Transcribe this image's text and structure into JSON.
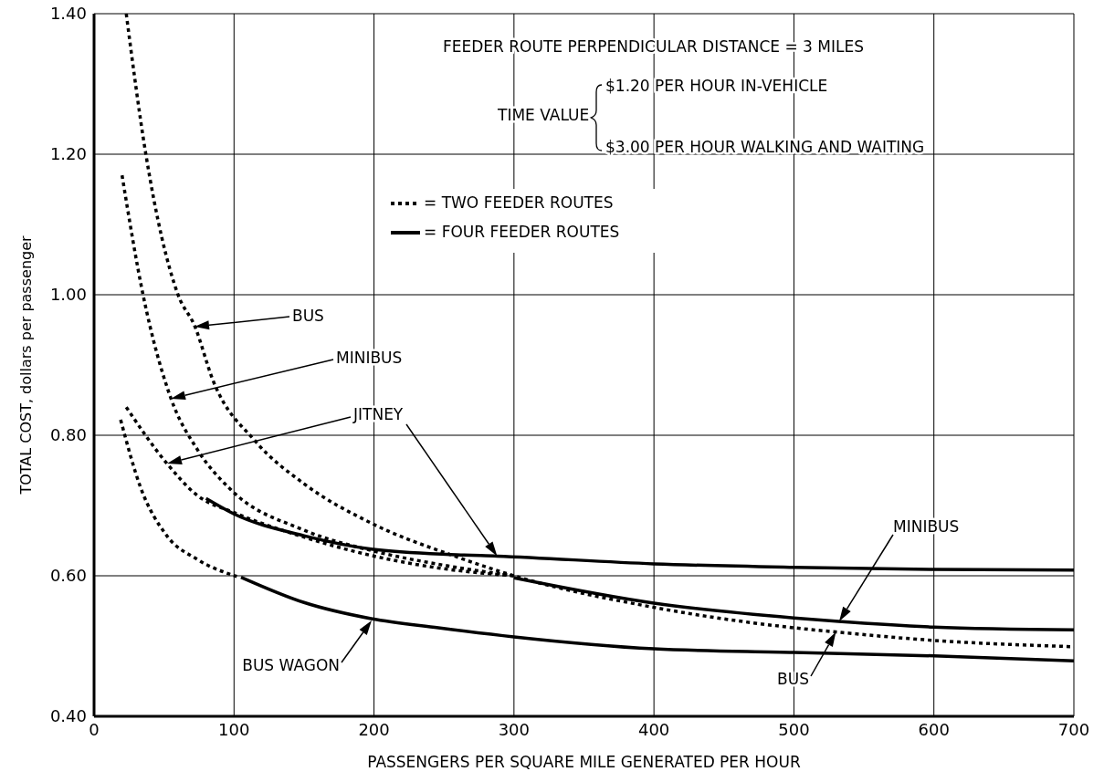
{
  "chart_data": {
    "type": "line",
    "xlabel": "PASSENGERS PER SQUARE MILE GENERATED PER HOUR",
    "ylabel": "TOTAL COST, dollars per passenger",
    "xlim": [
      0,
      700
    ],
    "xticks": [
      0,
      100,
      200,
      300,
      400,
      500,
      600,
      700
    ],
    "ylim": [
      0.4,
      1.4
    ],
    "yticks": [
      {
        "value": 0.4,
        "label": "0.40"
      },
      {
        "value": 0.6,
        "label": "0.60"
      },
      {
        "value": 0.8,
        "label": "0.80"
      },
      {
        "value": 1.0,
        "label": "1.00"
      },
      {
        "value": 1.2,
        "label": "1.20"
      },
      {
        "value": 1.4,
        "label": "1.40"
      }
    ],
    "grid": true,
    "legend": "top",
    "series": [
      {
        "name": "= TWO FEEDER ROUTES",
        "color": "#000000",
        "line_style": "dotted",
        "x": [
          23,
          37,
          60,
          72,
          85,
          115,
          150,
          198,
          259,
          300,
          400,
          500,
          530,
          600,
          700
        ],
        "values": [
          1.4,
          1.2,
          1.0,
          0.955,
          0.878,
          0.792,
          0.731,
          0.675,
          0.627,
          0.6,
          0.555,
          0.526,
          0.52,
          0.508,
          0.499
        ]
      },
      {
        "color": "#000000",
        "line_style": "dotted",
        "x": [
          20,
          35,
          55,
          74,
          98,
          150,
          200,
          250,
          300
        ],
        "values": [
          1.17,
          1.0,
          0.852,
          0.779,
          0.722,
          0.665,
          0.635,
          0.615,
          0.6
        ]
      },
      {
        "color": "#000000",
        "line_style": "dotted",
        "x": [
          23,
          52,
          74,
          100,
          150,
          200,
          250,
          300
        ],
        "values": [
          0.84,
          0.76,
          0.714,
          0.69,
          0.655,
          0.628,
          0.61,
          0.6
        ]
      },
      {
        "color": "#000000",
        "line_style": "dotted",
        "x": [
          19,
          33,
          52,
          74,
          102
        ],
        "values": [
          0.822,
          0.727,
          0.657,
          0.623,
          0.599
        ]
      },
      {
        "name": "= FOUR FEEDER ROUTES",
        "color": "#000000",
        "line_style": "solid",
        "x": [
          80,
          100,
          150,
          198,
          259,
          288,
          400,
          500,
          600,
          700
        ],
        "values": [
          0.71,
          0.688,
          0.657,
          0.638,
          0.63,
          0.628,
          0.617,
          0.612,
          0.609,
          0.608
        ]
      },
      {
        "color": "#000000",
        "line_style": "solid",
        "x": [
          300,
          400,
          500,
          532,
          600,
          700
        ],
        "values": [
          0.597,
          0.561,
          0.54,
          0.535,
          0.527,
          0.523
        ]
      },
      {
        "color": "#000000",
        "line_style": "solid",
        "x": [
          105,
          150,
          198,
          246,
          300,
          400,
          500,
          600,
          700
        ],
        "values": [
          0.598,
          0.562,
          0.539,
          0.526,
          0.513,
          0.496,
          0.491,
          0.486,
          0.479
        ]
      }
    ],
    "annotations": [
      "FEEDER ROUTE PERPENDICULAR DISTANCE = 3 MILES",
      "TIME VALUE",
      "$1.20 PER HOUR IN-VEHICLE",
      "$3.00 PER HOUR WALKING AND WAITING",
      "BUS",
      "MINIBUS",
      "JITNEY",
      "MINIBUS",
      {
        "text": "BUS",
        "x": 530,
        "y": 0.52
      },
      "BUS WAGON"
    ]
  }
}
